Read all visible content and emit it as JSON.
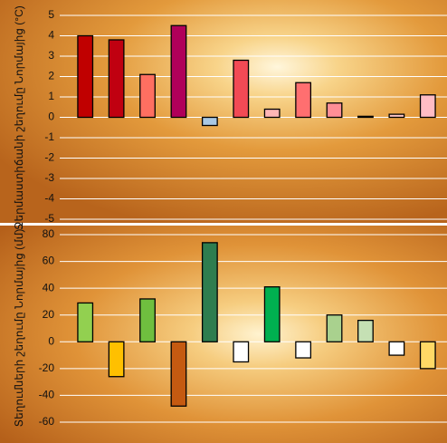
{
  "chart_data": [
    {
      "type": "bar",
      "ylabel": "Ջերմաստիճանի շեղումը Նորմայից (°C)",
      "values": [
        4.0,
        3.8,
        2.1,
        4.5,
        -0.4,
        2.8,
        0.4,
        1.7,
        0.7,
        0.05,
        0.15,
        1.1
      ],
      "colors": [
        "#c00000",
        "#c00010",
        "#ff6f61",
        "#b0005a",
        "#a9c8e4",
        "#f24a55",
        "#ffb6b6",
        "#ff6f70",
        "#ff8e96",
        "#ffc8c8",
        "#ffc8c8",
        "#ffbcc4"
      ],
      "ylim": [
        -5,
        5
      ],
      "yticks": [
        -5,
        -4,
        -3,
        -2,
        -1,
        0,
        1,
        2,
        3,
        4,
        5
      ],
      "grid": true
    },
    {
      "type": "bar",
      "ylabel": "Տեղումների շեղումը Նորմայից (մմ)",
      "values": [
        29,
        -26,
        32,
        -48,
        74,
        -15,
        41,
        -12,
        20,
        16,
        -10,
        -20
      ],
      "colors": [
        "#92d050",
        "#ffc000",
        "#6fbf3f",
        "#c55a11",
        "#2e7d4f",
        "#ffffff",
        "#00b050",
        "#ffffff",
        "#a9d18e",
        "#c5e0b4",
        "#ffffff",
        "#ffd966"
      ],
      "ylim": [
        -60,
        80
      ],
      "yticks": [
        -60,
        -40,
        -20,
        0,
        20,
        40,
        60,
        80
      ],
      "grid": true
    }
  ]
}
